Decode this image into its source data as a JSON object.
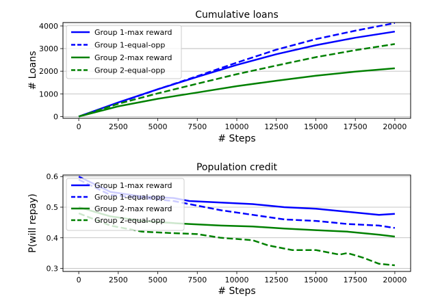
{
  "chart_data": [
    {
      "type": "line",
      "title": "Cumulative loans",
      "xlabel": "# Steps",
      "ylabel": "# Loans",
      "xlim": [
        -1000,
        21000
      ],
      "ylim": [
        -80,
        4150
      ],
      "xticks": [
        0,
        2500,
        5000,
        7500,
        10000,
        12500,
        15000,
        17500,
        20000
      ],
      "yticks": [
        0,
        1000,
        2000,
        3000,
        4000
      ],
      "grid": "horizontal",
      "legend": "upper-left",
      "series": [
        {
          "name": "Group 1-max reward",
          "color": "#0000ff",
          "dash": "solid",
          "x": [
            0,
            2500,
            5000,
            7500,
            10000,
            12500,
            15000,
            17500,
            20000
          ],
          "y": [
            0,
            620,
            1200,
            1750,
            2280,
            2750,
            3150,
            3480,
            3750
          ]
        },
        {
          "name": "Group 1-equal-opp",
          "color": "#0000ff",
          "dash": "dashed",
          "x": [
            0,
            2500,
            5000,
            7500,
            10000,
            12500,
            15000,
            17500,
            20000
          ],
          "y": [
            0,
            600,
            1200,
            1780,
            2380,
            2950,
            3420,
            3790,
            4130
          ]
        },
        {
          "name": "Group 2-max reward",
          "color": "#008000",
          "dash": "solid",
          "x": [
            0,
            2500,
            5000,
            7500,
            10000,
            12500,
            15000,
            17500,
            20000
          ],
          "y": [
            0,
            450,
            780,
            1060,
            1340,
            1580,
            1800,
            1980,
            2130
          ]
        },
        {
          "name": "Group 2-equal-opp",
          "color": "#008000",
          "dash": "dashed",
          "x": [
            0,
            2500,
            5000,
            7500,
            10000,
            12500,
            15000,
            17500,
            20000
          ],
          "y": [
            0,
            560,
            1020,
            1450,
            1870,
            2250,
            2620,
            2930,
            3200
          ]
        }
      ]
    },
    {
      "type": "line",
      "title": "Population credit",
      "xlabel": "# Steps",
      "ylabel": "P(will repay)",
      "xlim": [
        -1000,
        21000
      ],
      "ylim": [
        0.29,
        0.605
      ],
      "xticks": [
        0,
        2500,
        5000,
        7500,
        10000,
        12500,
        15000,
        17500,
        20000
      ],
      "yticks": [
        0.3,
        0.4,
        0.5,
        0.6
      ],
      "grid": "horizontal",
      "legend": "upper-left",
      "series": [
        {
          "name": "Group 1-max reward",
          "color": "#0000ff",
          "dash": "solid",
          "x": [
            0,
            2000,
            4000,
            6000,
            7000,
            9000,
            11000,
            13000,
            15000,
            17000,
            19000,
            20000
          ],
          "y": [
            0.6,
            0.55,
            0.535,
            0.53,
            0.52,
            0.515,
            0.51,
            0.5,
            0.495,
            0.485,
            0.475,
            0.478
          ]
        },
        {
          "name": "Group 1-equal-opp",
          "color": "#0000ff",
          "dash": "dashed",
          "x": [
            0,
            2000,
            4000,
            6000,
            7000,
            9000,
            11000,
            13000,
            15000,
            17000,
            19000,
            20000
          ],
          "y": [
            0.59,
            0.54,
            0.53,
            0.52,
            0.51,
            0.49,
            0.475,
            0.46,
            0.455,
            0.445,
            0.44,
            0.432
          ]
        },
        {
          "name": "Group 2-max reward",
          "color": "#008000",
          "dash": "solid",
          "x": [
            0,
            2000,
            4000,
            6000,
            7000,
            9000,
            11000,
            13000,
            15000,
            17000,
            19000,
            20000
          ],
          "y": [
            0.5,
            0.47,
            0.455,
            0.448,
            0.445,
            0.44,
            0.437,
            0.43,
            0.425,
            0.42,
            0.41,
            0.404
          ]
        },
        {
          "name": "Group 2-equal-opp",
          "color": "#008000",
          "dash": "dashed",
          "x": [
            0,
            2000,
            4000,
            6000,
            7500,
            9000,
            11000,
            12000,
            13500,
            15000,
            16500,
            17000,
            18000,
            19000,
            20000
          ],
          "y": [
            0.48,
            0.44,
            0.42,
            0.415,
            0.412,
            0.4,
            0.392,
            0.375,
            0.36,
            0.36,
            0.345,
            0.35,
            0.335,
            0.315,
            0.31
          ]
        }
      ]
    }
  ]
}
